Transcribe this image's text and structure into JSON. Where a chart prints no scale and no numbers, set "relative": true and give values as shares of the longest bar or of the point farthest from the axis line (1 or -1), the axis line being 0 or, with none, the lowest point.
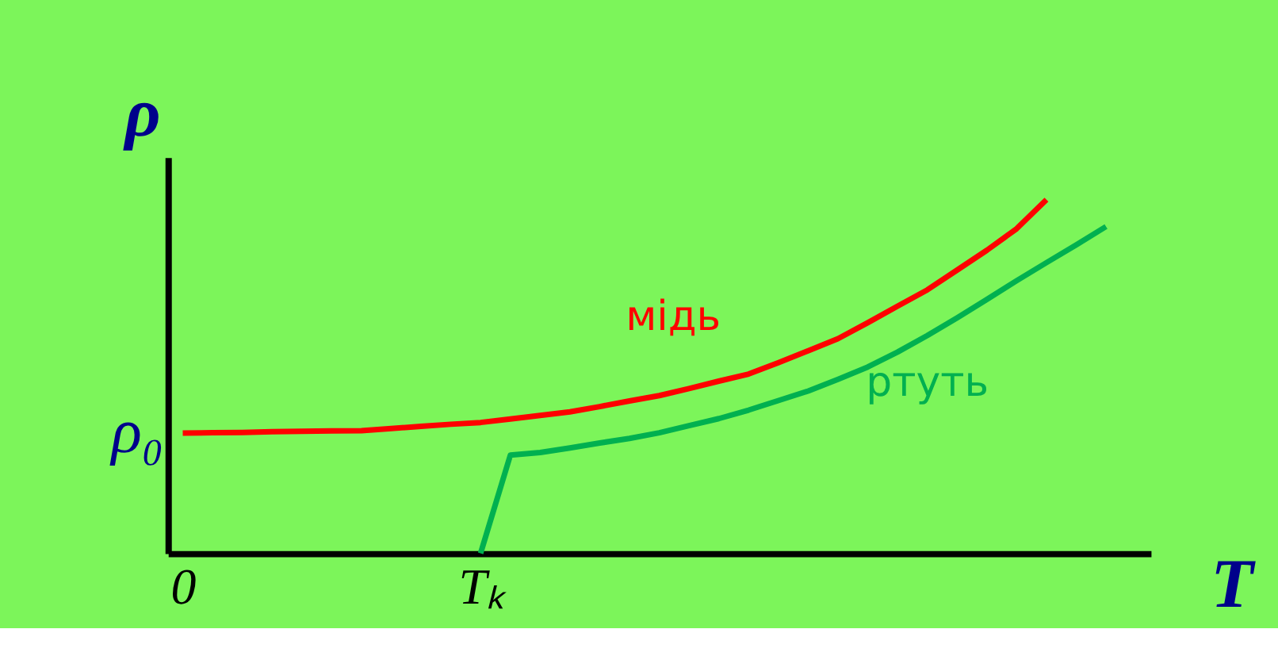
{
  "chart_data": {
    "type": "line",
    "relative": true,
    "xlabel": "T",
    "ylabel": "ρ",
    "categories": [
      "0",
      null,
      null,
      null,
      null,
      null,
      null,
      null,
      null,
      null,
      "Tₖ",
      null,
      null,
      null,
      null,
      null,
      null,
      null,
      null,
      null,
      null,
      null,
      null,
      null,
      null,
      null,
      null,
      null,
      null,
      null,
      null,
      null,
      null
    ],
    "annotations": [
      "ρ₀"
    ],
    "grid": false,
    "legend": false,
    "marker": "none",
    "line_style": "solid",
    "series": [
      {
        "name": "мідь",
        "color": "#ff0000",
        "values": [
          0.34,
          0.341,
          0.342,
          0.344,
          0.345,
          0.346,
          0.347,
          0.353,
          0.359,
          0.365,
          0.37,
          0.38,
          0.39,
          0.4,
          0.415,
          0.431,
          0.446,
          0.466,
          0.487,
          0.507,
          0.539,
          0.573,
          0.607,
          0.652,
          0.699,
          0.745,
          0.801,
          0.857,
          0.918,
          1.0,
          null,
          null,
          null
        ]
      },
      {
        "name": "ртуть",
        "color": "#00b050",
        "values": [
          null,
          null,
          null,
          null,
          null,
          null,
          null,
          null,
          null,
          null,
          0,
          0.278,
          0.285,
          0.298,
          0.312,
          0.325,
          0.341,
          0.361,
          0.381,
          0.405,
          0.432,
          0.459,
          0.492,
          0.527,
          0.569,
          0.616,
          0.666,
          0.718,
          0.771,
          0.822,
          0.872,
          0.924,
          null
        ]
      }
    ]
  }
}
